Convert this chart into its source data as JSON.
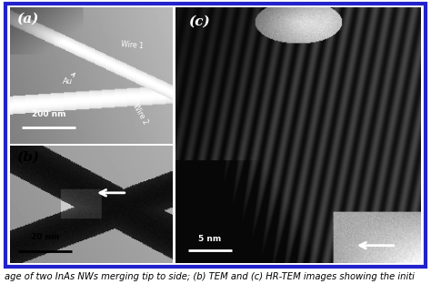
{
  "figure_bg": "#ffffff",
  "border_color": "#2222cc",
  "border_linewidth": 3,
  "caption_text": "age of two InAs NWs merging tip to side; (b) TEM and (c) HR-TEM images showing the initi",
  "caption_color": "#000000",
  "caption_fontsize": 7.2,
  "panel_a_label": "(a)",
  "panel_b_label": "(b)",
  "panel_c_label": "(c)",
  "panel_a_scalebar": "200 nm",
  "panel_b_scalebar": "20 nm",
  "panel_c_scalebar": "5 nm",
  "label_fontsize": 10,
  "scalebar_fontsize": 7
}
